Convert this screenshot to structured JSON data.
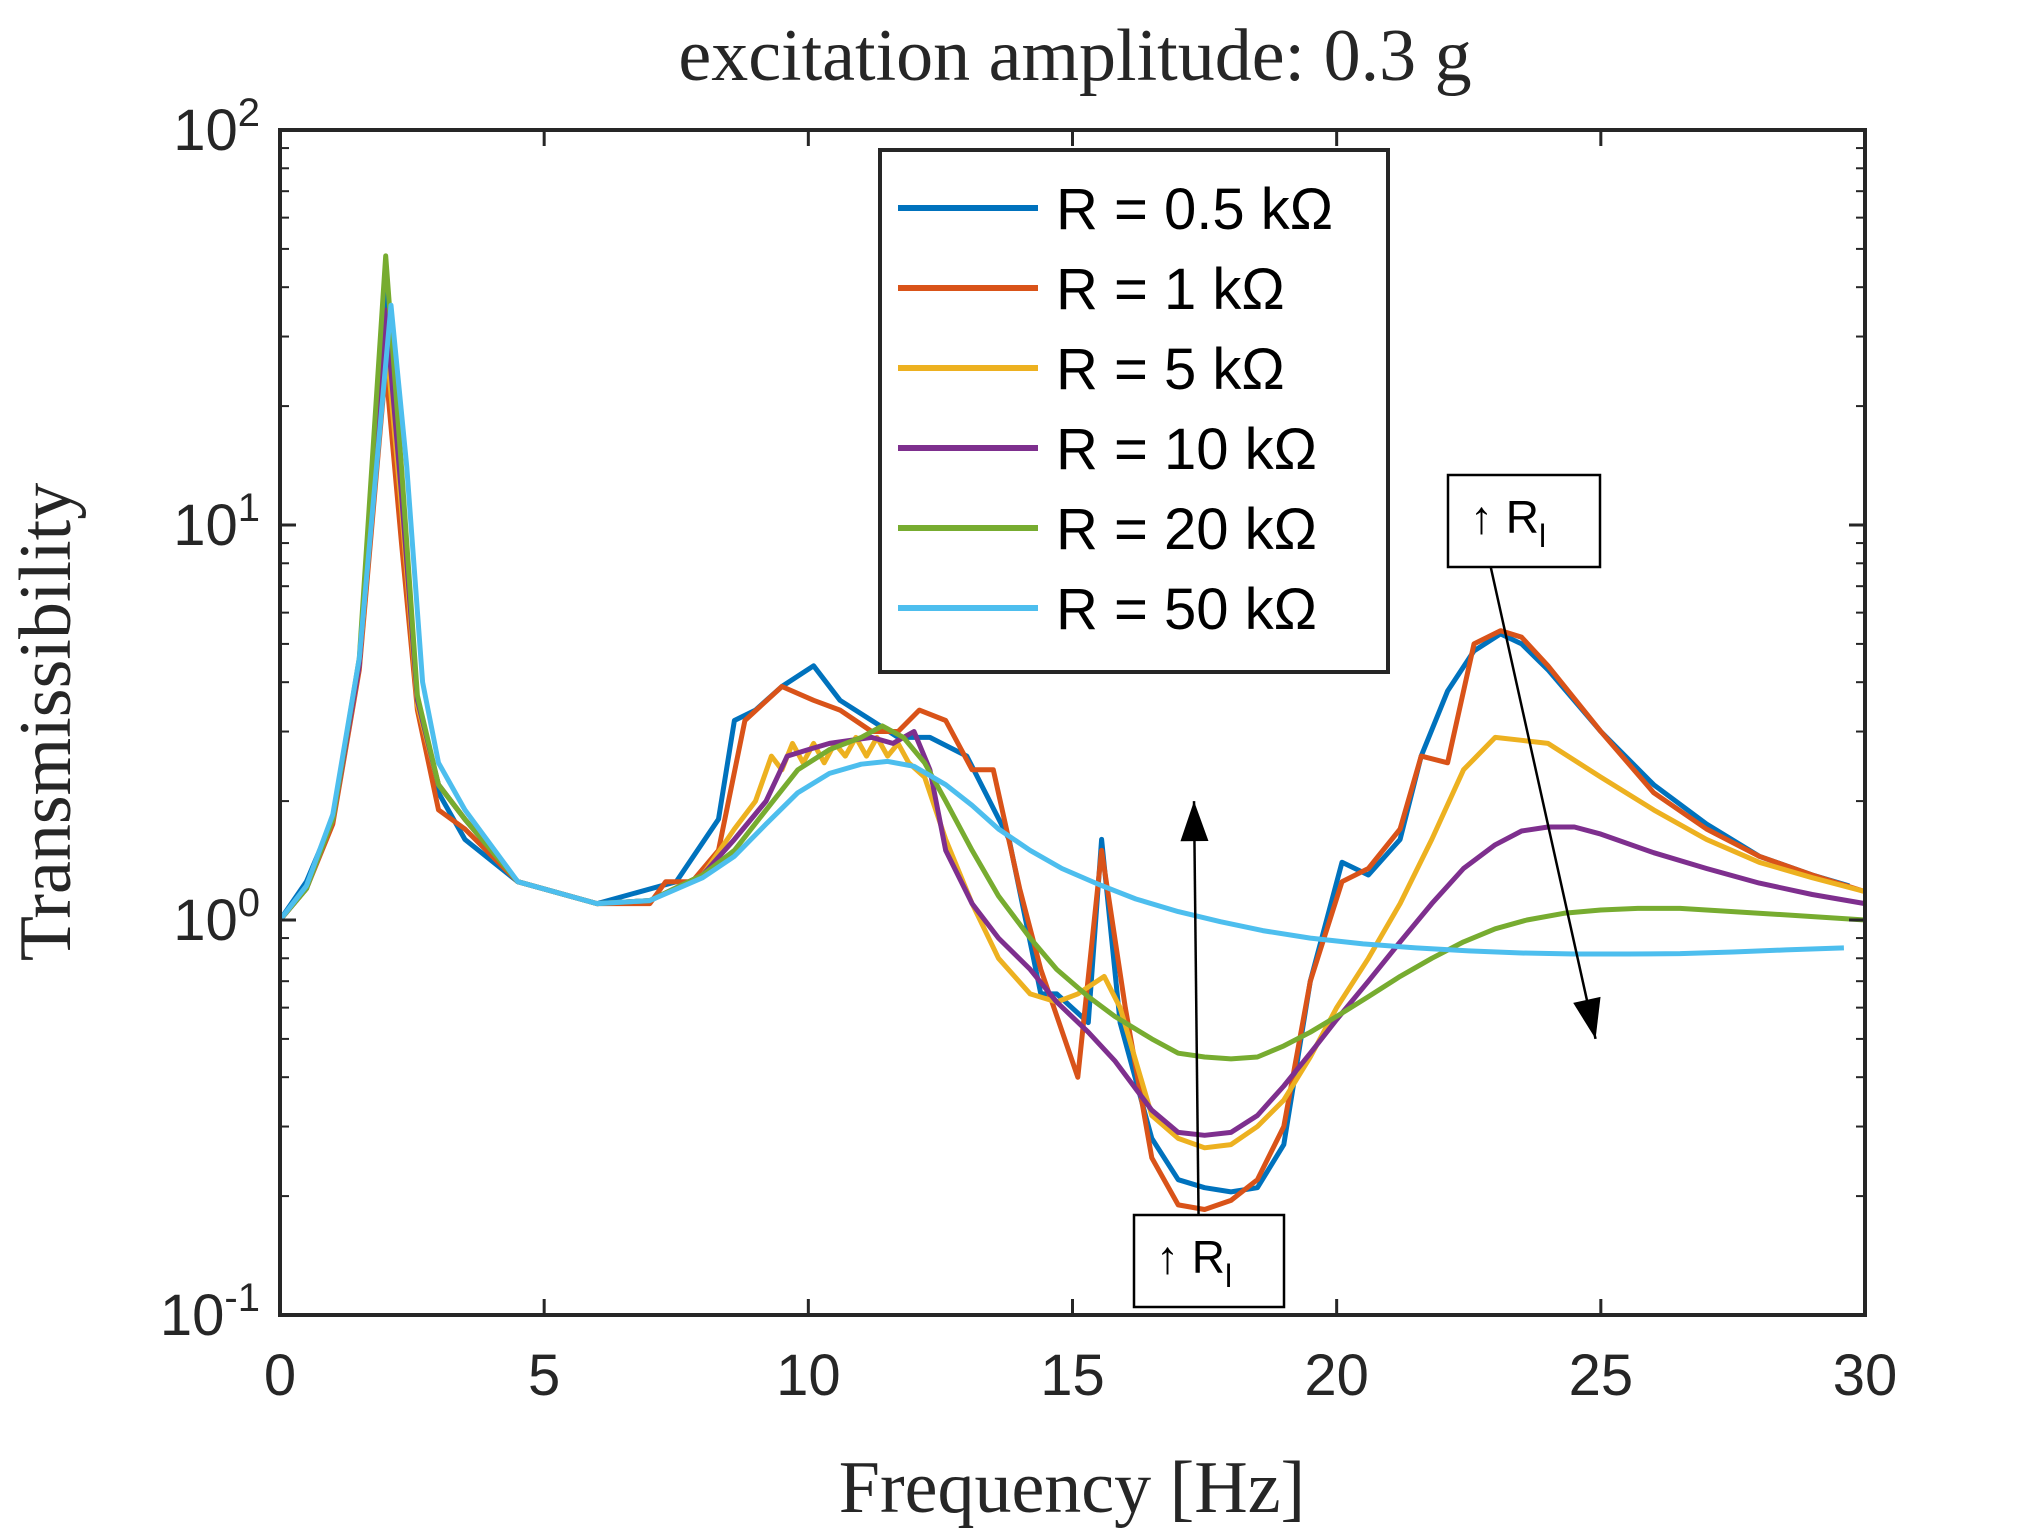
{
  "chart_data": {
    "type": "line",
    "title": "excitation amplitude: 0.3 g",
    "xlabel": "Frequency [Hz]",
    "ylabel": "Transmissibility",
    "xlim": [
      0,
      30
    ],
    "ylim": [
      0.1,
      100
    ],
    "yscale": "log",
    "xticks": [
      0,
      5,
      10,
      15,
      20,
      25,
      30
    ],
    "xtick_labels": [
      "0",
      "5",
      "10",
      "15",
      "20",
      "25",
      "30"
    ],
    "yticks": [
      0.1,
      1,
      10,
      100
    ],
    "ytick_labels": [
      {
        "base": "10",
        "exp": "-1"
      },
      {
        "base": "10",
        "exp": "0"
      },
      {
        "base": "10",
        "exp": "1"
      },
      {
        "base": "10",
        "exp": "2"
      }
    ],
    "grid": false,
    "legend_position": "top-center",
    "series": [
      {
        "name": "R = 0.5 kΩ",
        "color": "#0072BD",
        "points": [
          [
            0,
            1.0
          ],
          [
            0.5,
            1.25
          ],
          [
            1.0,
            1.8
          ],
          [
            1.5,
            4.5
          ],
          [
            2.0,
            40
          ],
          [
            2.3,
            12
          ],
          [
            2.6,
            3.6
          ],
          [
            3.0,
            2.1
          ],
          [
            3.5,
            1.6
          ],
          [
            4.5,
            1.25
          ],
          [
            6.0,
            1.1
          ],
          [
            7.5,
            1.25
          ],
          [
            8.3,
            1.8
          ],
          [
            8.6,
            3.2
          ],
          [
            9.0,
            3.4
          ],
          [
            9.5,
            3.9
          ],
          [
            10.1,
            4.4
          ],
          [
            10.6,
            3.6
          ],
          [
            11.2,
            3.2
          ],
          [
            11.7,
            2.9
          ],
          [
            12.3,
            2.9
          ],
          [
            13.0,
            2.6
          ],
          [
            13.8,
            1.6
          ],
          [
            14.4,
            0.65
          ],
          [
            14.7,
            0.65
          ],
          [
            15.3,
            0.55
          ],
          [
            15.55,
            1.6
          ],
          [
            15.9,
            0.55
          ],
          [
            16.5,
            0.28
          ],
          [
            17.0,
            0.22
          ],
          [
            17.5,
            0.21
          ],
          [
            18.0,
            0.205
          ],
          [
            18.5,
            0.21
          ],
          [
            19.0,
            0.27
          ],
          [
            19.5,
            0.7
          ],
          [
            20.1,
            1.4
          ],
          [
            20.6,
            1.3
          ],
          [
            21.2,
            1.6
          ],
          [
            21.6,
            2.6
          ],
          [
            22.1,
            3.8
          ],
          [
            22.6,
            4.8
          ],
          [
            23.1,
            5.3
          ],
          [
            23.5,
            5.0
          ],
          [
            24.0,
            4.3
          ],
          [
            25.0,
            3.0
          ],
          [
            26.0,
            2.2
          ],
          [
            27.0,
            1.75
          ],
          [
            28.0,
            1.45
          ],
          [
            29.0,
            1.3
          ],
          [
            29.7,
            1.22
          ]
        ]
      },
      {
        "name": "R = 1 kΩ",
        "color": "#D95319",
        "points": [
          [
            0,
            1.0
          ],
          [
            0.5,
            1.2
          ],
          [
            1.0,
            1.75
          ],
          [
            1.5,
            4.3
          ],
          [
            2.0,
            25
          ],
          [
            2.3,
            9
          ],
          [
            2.6,
            3.4
          ],
          [
            3.0,
            1.9
          ],
          [
            3.5,
            1.7
          ],
          [
            4.5,
            1.25
          ],
          [
            6.0,
            1.1
          ],
          [
            7.0,
            1.1
          ],
          [
            7.3,
            1.25
          ],
          [
            7.8,
            1.25
          ],
          [
            8.3,
            1.5
          ],
          [
            8.8,
            3.2
          ],
          [
            9.5,
            3.9
          ],
          [
            10.1,
            3.6
          ],
          [
            10.6,
            3.4
          ],
          [
            11.2,
            3.0
          ],
          [
            11.7,
            3.0
          ],
          [
            12.1,
            3.4
          ],
          [
            12.6,
            3.2
          ],
          [
            13.1,
            2.4
          ],
          [
            13.5,
            2.4
          ],
          [
            14.0,
            1.2
          ],
          [
            14.4,
            0.75
          ],
          [
            15.1,
            0.4
          ],
          [
            15.55,
            1.5
          ],
          [
            16.0,
            0.6
          ],
          [
            16.5,
            0.25
          ],
          [
            17.0,
            0.19
          ],
          [
            17.5,
            0.185
          ],
          [
            18.0,
            0.195
          ],
          [
            18.5,
            0.22
          ],
          [
            19.0,
            0.3
          ],
          [
            19.5,
            0.7
          ],
          [
            20.1,
            1.25
          ],
          [
            20.6,
            1.35
          ],
          [
            21.2,
            1.7
          ],
          [
            21.6,
            2.6
          ],
          [
            22.1,
            2.5
          ],
          [
            22.6,
            5.0
          ],
          [
            23.1,
            5.4
          ],
          [
            23.5,
            5.2
          ],
          [
            24.0,
            4.4
          ],
          [
            25.0,
            3.0
          ],
          [
            26.0,
            2.1
          ],
          [
            27.0,
            1.7
          ],
          [
            28.0,
            1.45
          ],
          [
            29.0,
            1.3
          ],
          [
            30.0,
            1.18
          ]
        ]
      },
      {
        "name": "R = 5 kΩ",
        "color": "#EDB120",
        "points": [
          [
            0,
            1.0
          ],
          [
            0.5,
            1.2
          ],
          [
            1.0,
            1.8
          ],
          [
            1.5,
            4.4
          ],
          [
            2.0,
            30
          ],
          [
            2.3,
            11
          ],
          [
            2.6,
            3.5
          ],
          [
            3.0,
            2.2
          ],
          [
            3.5,
            1.8
          ],
          [
            4.5,
            1.25
          ],
          [
            6.0,
            1.1
          ],
          [
            7.0,
            1.12
          ],
          [
            8.0,
            1.3
          ],
          [
            8.6,
            1.7
          ],
          [
            9.0,
            2.0
          ],
          [
            9.3,
            2.6
          ],
          [
            9.5,
            2.4
          ],
          [
            9.7,
            2.8
          ],
          [
            9.9,
            2.5
          ],
          [
            10.1,
            2.8
          ],
          [
            10.3,
            2.5
          ],
          [
            10.5,
            2.8
          ],
          [
            10.7,
            2.6
          ],
          [
            10.9,
            2.9
          ],
          [
            11.1,
            2.6
          ],
          [
            11.3,
            2.9
          ],
          [
            11.5,
            2.6
          ],
          [
            11.7,
            2.8
          ],
          [
            11.9,
            2.5
          ],
          [
            12.2,
            2.3
          ],
          [
            12.6,
            1.6
          ],
          [
            13.1,
            1.1
          ],
          [
            13.6,
            0.8
          ],
          [
            14.2,
            0.65
          ],
          [
            14.7,
            0.62
          ],
          [
            15.1,
            0.65
          ],
          [
            15.6,
            0.72
          ],
          [
            15.9,
            0.6
          ],
          [
            16.5,
            0.32
          ],
          [
            17.0,
            0.28
          ],
          [
            17.5,
            0.265
          ],
          [
            18.0,
            0.27
          ],
          [
            18.5,
            0.3
          ],
          [
            19.0,
            0.35
          ],
          [
            19.5,
            0.45
          ],
          [
            20.0,
            0.6
          ],
          [
            20.6,
            0.8
          ],
          [
            21.2,
            1.1
          ],
          [
            21.8,
            1.6
          ],
          [
            22.4,
            2.4
          ],
          [
            23.0,
            2.9
          ],
          [
            23.5,
            2.85
          ],
          [
            24.0,
            2.8
          ],
          [
            25.0,
            2.3
          ],
          [
            26.0,
            1.9
          ],
          [
            27.0,
            1.6
          ],
          [
            28.0,
            1.4
          ],
          [
            29.0,
            1.28
          ],
          [
            30.0,
            1.18
          ]
        ]
      },
      {
        "name": "R = 10 kΩ",
        "color": "#7E2F8E",
        "points": [
          [
            0,
            1.0
          ],
          [
            0.5,
            1.2
          ],
          [
            1.0,
            1.8
          ],
          [
            1.5,
            4.4
          ],
          [
            2.0,
            35
          ],
          [
            2.3,
            12
          ],
          [
            2.6,
            3.6
          ],
          [
            3.0,
            2.2
          ],
          [
            3.5,
            1.8
          ],
          [
            4.5,
            1.25
          ],
          [
            6.0,
            1.1
          ],
          [
            7.0,
            1.12
          ],
          [
            8.0,
            1.3
          ],
          [
            8.6,
            1.6
          ],
          [
            9.2,
            2.0
          ],
          [
            9.6,
            2.6
          ],
          [
            10.0,
            2.7
          ],
          [
            10.4,
            2.8
          ],
          [
            10.8,
            2.85
          ],
          [
            11.2,
            2.9
          ],
          [
            11.6,
            2.8
          ],
          [
            12.0,
            3.0
          ],
          [
            12.3,
            2.4
          ],
          [
            12.6,
            1.5
          ],
          [
            13.1,
            1.1
          ],
          [
            13.6,
            0.9
          ],
          [
            14.2,
            0.75
          ],
          [
            14.7,
            0.62
          ],
          [
            15.3,
            0.52
          ],
          [
            15.8,
            0.44
          ],
          [
            16.5,
            0.33
          ],
          [
            17.0,
            0.29
          ],
          [
            17.5,
            0.285
          ],
          [
            18.0,
            0.29
          ],
          [
            18.5,
            0.32
          ],
          [
            19.0,
            0.38
          ],
          [
            19.5,
            0.46
          ],
          [
            20.0,
            0.56
          ],
          [
            20.6,
            0.7
          ],
          [
            21.2,
            0.88
          ],
          [
            21.8,
            1.1
          ],
          [
            22.4,
            1.35
          ],
          [
            23.0,
            1.55
          ],
          [
            23.5,
            1.68
          ],
          [
            24.0,
            1.72
          ],
          [
            24.5,
            1.72
          ],
          [
            25.0,
            1.65
          ],
          [
            26.0,
            1.48
          ],
          [
            27.0,
            1.35
          ],
          [
            28.0,
            1.24
          ],
          [
            29.0,
            1.16
          ],
          [
            30.0,
            1.1
          ]
        ]
      },
      {
        "name": "R = 20 kΩ",
        "color": "#77AC30",
        "points": [
          [
            0,
            1.0
          ],
          [
            0.5,
            1.2
          ],
          [
            1.0,
            1.8
          ],
          [
            1.5,
            4.6
          ],
          [
            2.0,
            48
          ],
          [
            2.3,
            14
          ],
          [
            2.6,
            3.7
          ],
          [
            3.0,
            2.2
          ],
          [
            3.5,
            1.8
          ],
          [
            4.5,
            1.25
          ],
          [
            6.0,
            1.1
          ],
          [
            7.0,
            1.12
          ],
          [
            8.0,
            1.3
          ],
          [
            8.6,
            1.5
          ],
          [
            9.2,
            1.9
          ],
          [
            9.8,
            2.4
          ],
          [
            10.4,
            2.7
          ],
          [
            11.0,
            2.9
          ],
          [
            11.4,
            3.1
          ],
          [
            11.8,
            2.9
          ],
          [
            12.2,
            2.5
          ],
          [
            12.6,
            2.0
          ],
          [
            13.1,
            1.5
          ],
          [
            13.6,
            1.15
          ],
          [
            14.2,
            0.9
          ],
          [
            14.7,
            0.75
          ],
          [
            15.3,
            0.64
          ],
          [
            15.8,
            0.57
          ],
          [
            16.5,
            0.5
          ],
          [
            17.0,
            0.46
          ],
          [
            17.5,
            0.45
          ],
          [
            18.0,
            0.445
          ],
          [
            18.5,
            0.45
          ],
          [
            19.0,
            0.48
          ],
          [
            19.5,
            0.52
          ],
          [
            20.0,
            0.57
          ],
          [
            20.6,
            0.64
          ],
          [
            21.2,
            0.72
          ],
          [
            21.8,
            0.8
          ],
          [
            22.4,
            0.88
          ],
          [
            23.0,
            0.95
          ],
          [
            23.6,
            1.0
          ],
          [
            24.3,
            1.04
          ],
          [
            25.0,
            1.06
          ],
          [
            25.7,
            1.07
          ],
          [
            26.5,
            1.07
          ],
          [
            27.5,
            1.05
          ],
          [
            28.5,
            1.03
          ],
          [
            30.0,
            1.0
          ]
        ]
      },
      {
        "name": "R = 50 kΩ",
        "color": "#4DBEEE",
        "points": [
          [
            0,
            1.0
          ],
          [
            0.5,
            1.22
          ],
          [
            1.0,
            1.85
          ],
          [
            1.5,
            4.6
          ],
          [
            2.1,
            36
          ],
          [
            2.4,
            14
          ],
          [
            2.7,
            4.0
          ],
          [
            3.0,
            2.5
          ],
          [
            3.5,
            1.9
          ],
          [
            4.5,
            1.25
          ],
          [
            6.0,
            1.1
          ],
          [
            7.0,
            1.12
          ],
          [
            8.0,
            1.28
          ],
          [
            8.6,
            1.45
          ],
          [
            9.2,
            1.75
          ],
          [
            9.8,
            2.1
          ],
          [
            10.4,
            2.35
          ],
          [
            11.0,
            2.48
          ],
          [
            11.5,
            2.52
          ],
          [
            12.0,
            2.45
          ],
          [
            12.6,
            2.2
          ],
          [
            13.1,
            1.95
          ],
          [
            13.6,
            1.7
          ],
          [
            14.2,
            1.5
          ],
          [
            14.8,
            1.35
          ],
          [
            15.5,
            1.23
          ],
          [
            16.2,
            1.13
          ],
          [
            17.0,
            1.05
          ],
          [
            17.8,
            0.99
          ],
          [
            18.6,
            0.94
          ],
          [
            19.5,
            0.9
          ],
          [
            20.5,
            0.87
          ],
          [
            21.5,
            0.85
          ],
          [
            22.5,
            0.835
          ],
          [
            23.5,
            0.825
          ],
          [
            24.5,
            0.82
          ],
          [
            25.5,
            0.82
          ],
          [
            26.5,
            0.822
          ],
          [
            27.5,
            0.83
          ],
          [
            28.5,
            0.84
          ],
          [
            29.6,
            0.85
          ]
        ]
      }
    ],
    "annotations": [
      {
        "label_main": "↑ R",
        "label_sub": "l",
        "arrow_from": [
          17.4,
          0.12
        ],
        "arrow_to": [
          17.3,
          2.0
        ]
      },
      {
        "label_main": "↑ R",
        "label_sub": "l",
        "arrow_from": [
          22.9,
          8.0
        ],
        "arrow_to": [
          24.9,
          0.5
        ]
      }
    ]
  }
}
